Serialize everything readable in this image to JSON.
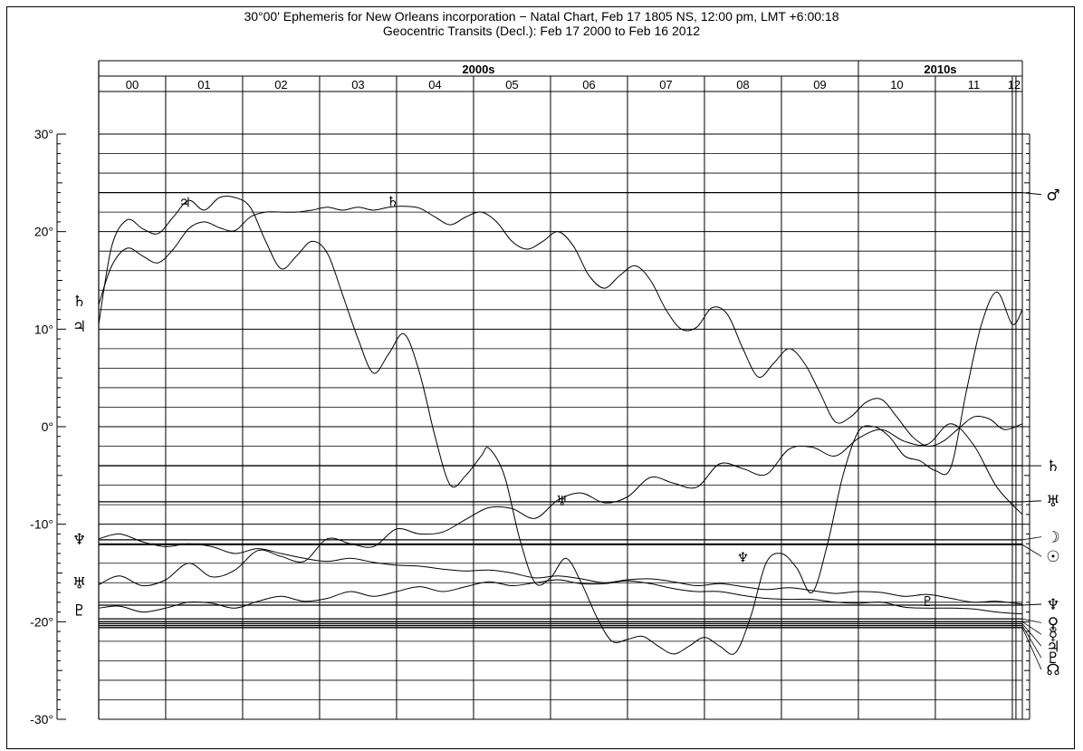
{
  "header": {
    "title_line1": "30°00' Ephemeris for New Orleans incorporation − Natal Chart,  Feb 17 1805 NS, 12:00 pm, LMT +6:00:18",
    "title_line2": "Geocentric Transits (Decl.): Feb 17 2000 to Feb 16 2012"
  },
  "chart_data": {
    "type": "line",
    "title": "30°00' Ephemeris for New Orleans incorporation − Natal Chart,  Feb 17 1805 NS, 12:00 pm, LMT +6:00:18",
    "subtitle": "Geocentric Transits (Decl.): Feb 17 2000 to Feb 16 2012",
    "x_range": [
      2000.13,
      2012.13
    ],
    "ylim": [
      -30,
      30
    ],
    "decades": [
      {
        "label": "2000s",
        "start": 2000.13,
        "end": 2010
      },
      {
        "label": "2010s",
        "start": 2010,
        "end": 2012.13
      }
    ],
    "years": [
      {
        "label": "00",
        "start": 2000.13,
        "end": 2001
      },
      {
        "label": "01",
        "start": 2001,
        "end": 2002
      },
      {
        "label": "02",
        "start": 2002,
        "end": 2003
      },
      {
        "label": "03",
        "start": 2003,
        "end": 2004
      },
      {
        "label": "04",
        "start": 2004,
        "end": 2005
      },
      {
        "label": "05",
        "start": 2005,
        "end": 2006
      },
      {
        "label": "06",
        "start": 2006,
        "end": 2007
      },
      {
        "label": "07",
        "start": 2007,
        "end": 2008
      },
      {
        "label": "08",
        "start": 2008,
        "end": 2009
      },
      {
        "label": "09",
        "start": 2009,
        "end": 2010
      },
      {
        "label": "10",
        "start": 2010,
        "end": 2011
      },
      {
        "label": "11",
        "start": 2011,
        "end": 2012
      },
      {
        "label": "12",
        "start": 2012,
        "end": 2012.13
      }
    ],
    "y_ticks": [
      {
        "value": 30,
        "label": "30°"
      },
      {
        "value": 20,
        "label": "20°"
      },
      {
        "value": 10,
        "label": "10°"
      },
      {
        "value": 0,
        "label": "0°"
      },
      {
        "value": -10,
        "label": "-10°"
      },
      {
        "value": -20,
        "label": "-20°"
      },
      {
        "value": -30,
        "label": "-30°"
      }
    ],
    "natal_lines": [
      {
        "planet": "mars",
        "glyph": "♂",
        "value": 24.0,
        "label_value": 23.8
      },
      {
        "planet": "saturn",
        "glyph": "♄",
        "value": -4.0,
        "label_value": -4.0
      },
      {
        "planet": "uranus",
        "glyph": "♅",
        "value": -7.7,
        "label_value": -7.6
      },
      {
        "planet": "moon",
        "glyph": "☽",
        "value": -11.6,
        "label_value": -11.3
      },
      {
        "planet": "sun",
        "glyph": "☉",
        "value": -12.1,
        "label_value": -13.3
      },
      {
        "planet": "neptune",
        "glyph": "♆",
        "value": -18.3,
        "label_value": -18.2
      },
      {
        "planet": "venus",
        "glyph": "♀",
        "value": -19.7,
        "label_value": -20.1
      },
      {
        "planet": "mercury",
        "glyph": "☿",
        "value": -20.0,
        "label_value": -21.3
      },
      {
        "planet": "jupiter",
        "glyph": "♃",
        "value": -20.2,
        "label_value": -22.5
      },
      {
        "planet": "pluto",
        "glyph": "♇",
        "value": -20.4,
        "label_value": -23.7
      },
      {
        "planet": "node",
        "glyph": "☊",
        "value": -20.6,
        "label_value": -24.9
      }
    ],
    "series": [
      {
        "planet": "jupiter",
        "glyph": "♃",
        "label_x": 2000.02,
        "label_y": 10.3,
        "inline_x": 2001.25,
        "inline_y": 22.9,
        "x": [
          2000.13,
          2000.3,
          2000.5,
          2000.7,
          2000.9,
          2001.1,
          2001.3,
          2001.5,
          2001.7,
          2001.9,
          2002.1,
          2002.3,
          2002.5,
          2002.7,
          2002.9,
          2003.1,
          2003.3,
          2003.5,
          2003.7,
          2003.9,
          2004.1,
          2004.3,
          2004.5,
          2004.7,
          2004.9,
          2005.1,
          2005.2,
          2005.4,
          2005.6,
          2005.8,
          2006.0,
          2006.2,
          2006.4,
          2006.6,
          2006.8,
          2007.0,
          2007.2,
          2007.4,
          2007.6,
          2007.8,
          2008.0,
          2008.2,
          2008.4,
          2008.6,
          2008.8,
          2009.0,
          2009.2,
          2009.4,
          2009.6,
          2009.8,
          2010.0,
          2010.2,
          2010.4,
          2010.6,
          2010.8,
          2011.0,
          2011.2,
          2011.4,
          2011.6,
          2011.8,
          2012.0,
          2012.13
        ],
        "y": [
          10.5,
          18.5,
          21.2,
          20.3,
          19.8,
          21.5,
          23.2,
          22.2,
          23.5,
          23.5,
          22.5,
          19.0,
          16.2,
          17.5,
          19.0,
          17.8,
          13.5,
          9.0,
          5.5,
          7.5,
          9.5,
          5.5,
          -1.0,
          -6.0,
          -5.0,
          -3.0,
          -2.2,
          -5.0,
          -11.5,
          -16.0,
          -15.5,
          -13.5,
          -16.0,
          -19.5,
          -22.0,
          -21.8,
          -21.5,
          -22.5,
          -23.3,
          -22.5,
          -21.6,
          -22.5,
          -23.2,
          -19.5,
          -14.0,
          -13.0,
          -14.5,
          -17.0,
          -12.0,
          -5.0,
          -0.5,
          0.0,
          -1.0,
          -3.0,
          -3.5,
          -4.5,
          -4.2,
          3.5,
          10.5,
          13.8,
          10.5,
          12.0
        ]
      },
      {
        "planet": "saturn",
        "glyph": "♄",
        "label_x": 2000.02,
        "label_y": 12.9,
        "inline_x": 2003.95,
        "inline_y": 23.0,
        "x": [
          2000.13,
          2000.3,
          2000.5,
          2000.7,
          2000.9,
          2001.1,
          2001.3,
          2001.5,
          2001.7,
          2001.9,
          2002.1,
          2002.3,
          2002.5,
          2002.7,
          2002.9,
          2003.1,
          2003.3,
          2003.5,
          2003.7,
          2003.9,
          2004.1,
          2004.3,
          2004.5,
          2004.7,
          2004.9,
          2005.1,
          2005.3,
          2005.5,
          2005.7,
          2005.9,
          2006.1,
          2006.3,
          2006.5,
          2006.7,
          2006.9,
          2007.1,
          2007.3,
          2007.5,
          2007.7,
          2007.9,
          2008.1,
          2008.3,
          2008.5,
          2008.7,
          2008.9,
          2009.1,
          2009.3,
          2009.5,
          2009.7,
          2009.9,
          2010.1,
          2010.3,
          2010.5,
          2010.7,
          2010.9,
          2011.1,
          2011.3,
          2011.5,
          2011.7,
          2011.9,
          2012.13
        ],
        "y": [
          12.5,
          16.5,
          18.3,
          17.5,
          16.8,
          18.2,
          20.3,
          21.0,
          20.4,
          20.1,
          21.5,
          22.0,
          22.0,
          22.0,
          22.2,
          22.5,
          22.2,
          22.5,
          22.2,
          22.5,
          22.6,
          22.4,
          21.5,
          20.7,
          21.5,
          22.0,
          21.0,
          19.0,
          18.2,
          19.0,
          20.0,
          18.5,
          15.5,
          14.2,
          15.5,
          16.5,
          15.0,
          12.0,
          10.0,
          10.2,
          12.2,
          11.5,
          8.0,
          5.1,
          6.5,
          8.0,
          6.5,
          3.5,
          0.5,
          1.0,
          2.5,
          2.8,
          1.0,
          -1.0,
          -2.0,
          -1.5,
          -0.2,
          1.0,
          0.8,
          -0.3,
          0.3
        ]
      },
      {
        "planet": "uranus",
        "glyph": "♅",
        "label_x": 2000.02,
        "label_y": -16.0,
        "inline_x": 2006.15,
        "inline_y": -7.7,
        "x": [
          2000.13,
          2000.4,
          2000.7,
          2001.0,
          2001.3,
          2001.6,
          2001.9,
          2002.2,
          2002.5,
          2002.8,
          2003.1,
          2003.4,
          2003.7,
          2004.0,
          2004.3,
          2004.6,
          2004.9,
          2005.2,
          2005.5,
          2005.8,
          2006.1,
          2006.4,
          2006.7,
          2007.0,
          2007.3,
          2007.6,
          2007.9,
          2008.2,
          2008.5,
          2008.8,
          2009.1,
          2009.4,
          2009.7,
          2010.0,
          2010.3,
          2010.6,
          2010.9,
          2011.2,
          2011.5,
          2011.8,
          2012.13
        ],
        "y": [
          -16.2,
          -15.3,
          -16.3,
          -15.7,
          -14.0,
          -15.4,
          -14.7,
          -12.7,
          -13.3,
          -13.8,
          -11.5,
          -12.0,
          -12.3,
          -10.5,
          -11.0,
          -10.8,
          -9.5,
          -8.3,
          -8.4,
          -9.4,
          -7.5,
          -6.8,
          -7.8,
          -7.2,
          -5.2,
          -5.8,
          -6.2,
          -3.8,
          -4.3,
          -4.9,
          -2.3,
          -2.1,
          -3.0,
          -1.2,
          -0.3,
          -1.5,
          -1.8,
          0.3,
          -1.9,
          -6.2,
          -9.0
        ]
      },
      {
        "planet": "neptune",
        "glyph": "♆",
        "label_x": 2000.02,
        "label_y": -11.5,
        "inline_x": 2008.5,
        "inline_y": -13.5,
        "x": [
          2000.13,
          2000.4,
          2000.7,
          2001.0,
          2001.3,
          2001.6,
          2001.9,
          2002.2,
          2002.5,
          2002.8,
          2003.1,
          2003.4,
          2003.7,
          2004.0,
          2004.3,
          2004.6,
          2004.9,
          2005.2,
          2005.5,
          2005.8,
          2006.1,
          2006.4,
          2006.7,
          2007.0,
          2007.3,
          2007.6,
          2007.9,
          2008.2,
          2008.5,
          2008.8,
          2009.1,
          2009.4,
          2009.7,
          2010.0,
          2010.3,
          2010.6,
          2010.9,
          2011.2,
          2011.5,
          2011.8,
          2012.13
        ],
        "y": [
          -11.5,
          -11.0,
          -11.8,
          -12.3,
          -12.0,
          -12.3,
          -13.0,
          -12.5,
          -13.0,
          -13.5,
          -13.8,
          -13.5,
          -13.9,
          -14.2,
          -14.3,
          -14.6,
          -14.8,
          -14.7,
          -15.0,
          -15.5,
          -15.3,
          -15.6,
          -16.0,
          -15.7,
          -15.6,
          -15.9,
          -16.3,
          -16.1,
          -16.4,
          -16.7,
          -16.5,
          -16.8,
          -17.1,
          -16.9,
          -17.0,
          -17.4,
          -17.2,
          -17.6,
          -18.0,
          -17.9,
          -18.2
        ]
      },
      {
        "planet": "pluto",
        "glyph": "♇",
        "label_x": 2000.02,
        "label_y": -18.8,
        "inline_x": 2010.9,
        "inline_y": -18.0,
        "x": [
          2000.13,
          2000.4,
          2000.7,
          2001.0,
          2001.3,
          2001.6,
          2001.9,
          2002.2,
          2002.5,
          2002.8,
          2003.1,
          2003.4,
          2003.7,
          2004.0,
          2004.3,
          2004.6,
          2004.9,
          2005.2,
          2005.5,
          2005.8,
          2006.1,
          2006.4,
          2006.7,
          2007.0,
          2007.3,
          2007.6,
          2007.9,
          2008.2,
          2008.5,
          2008.8,
          2009.1,
          2009.4,
          2009.7,
          2010.0,
          2010.3,
          2010.6,
          2010.9,
          2011.2,
          2011.5,
          2011.8,
          2012.13
        ],
        "y": [
          -18.6,
          -18.4,
          -19.0,
          -18.6,
          -18.0,
          -18.1,
          -18.6,
          -17.9,
          -17.4,
          -17.9,
          -17.6,
          -16.9,
          -17.4,
          -16.9,
          -16.4,
          -16.9,
          -16.4,
          -15.9,
          -16.3,
          -16.0,
          -15.7,
          -16.1,
          -16.1,
          -15.8,
          -16.1,
          -16.6,
          -16.9,
          -16.9,
          -17.3,
          -17.6,
          -17.7,
          -17.7,
          -18.0,
          -18.1,
          -18.0,
          -18.5,
          -18.6,
          -18.6,
          -18.7,
          -19.0,
          -19.2
        ]
      }
    ]
  }
}
